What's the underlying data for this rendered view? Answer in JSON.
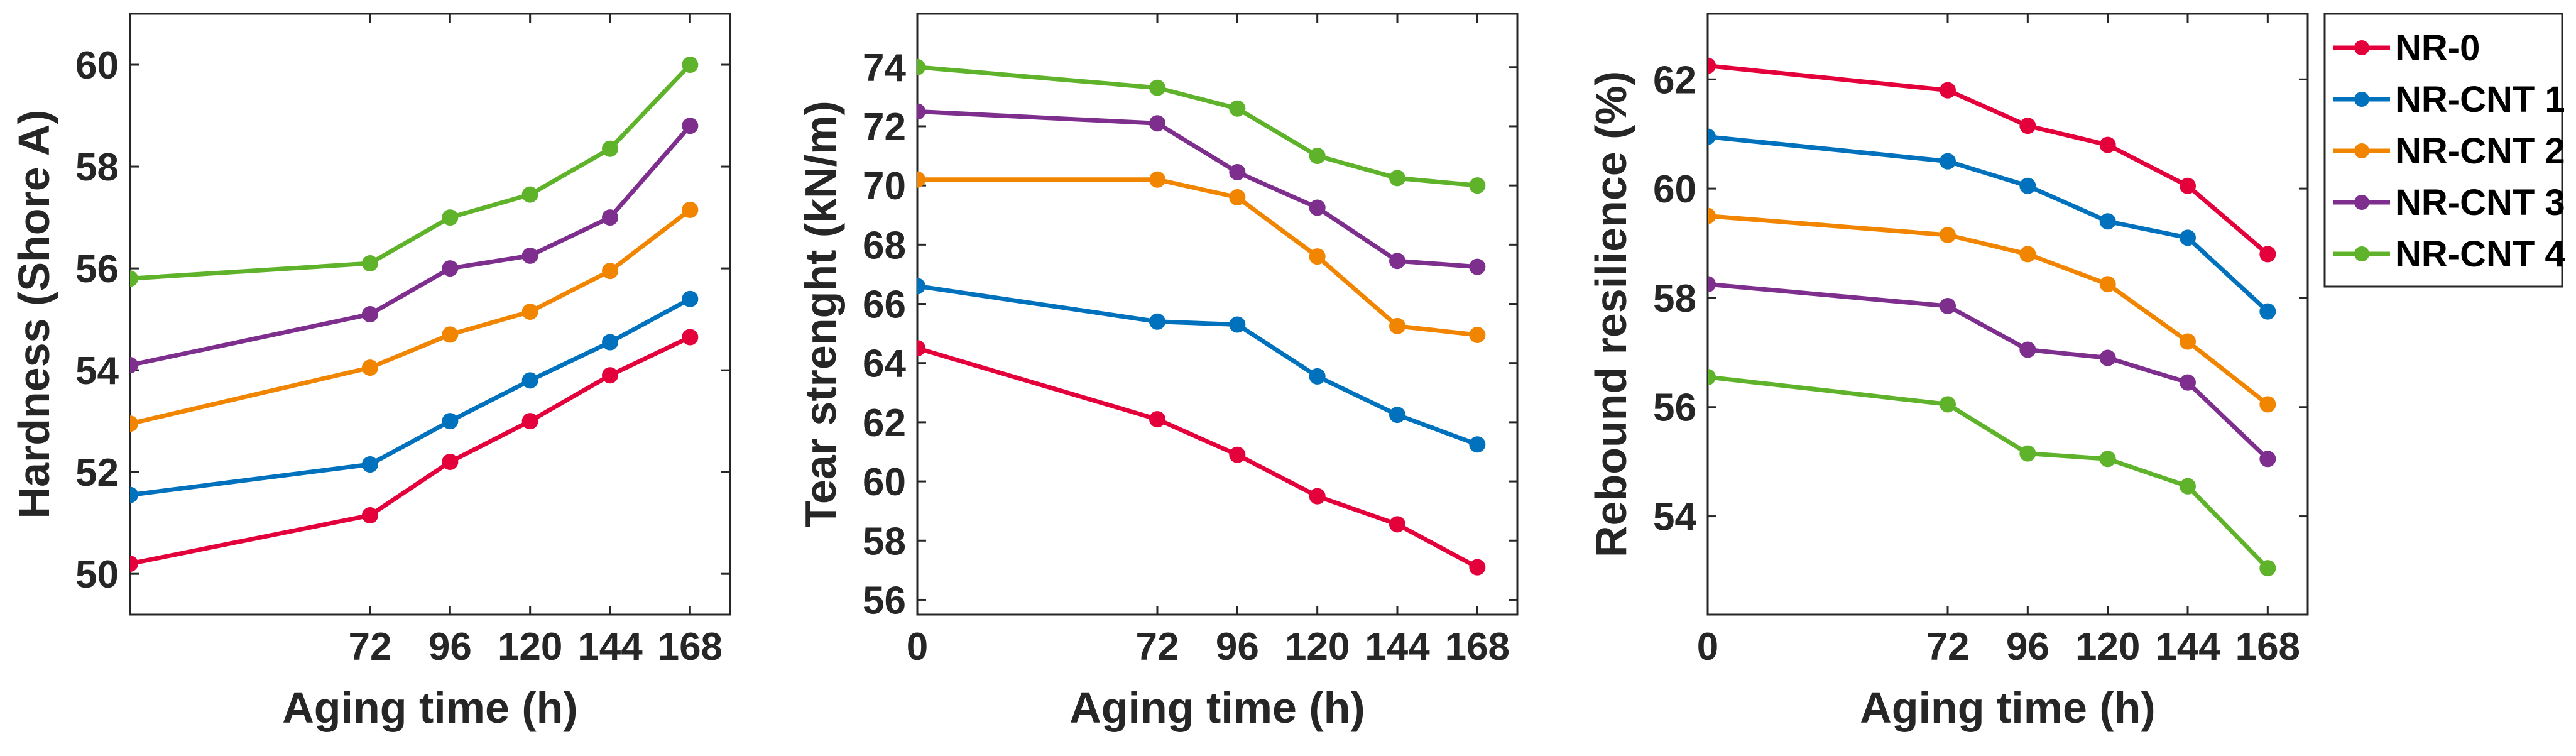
{
  "legend": {
    "entries": [
      "NR-0",
      "NR-CNT 1",
      "NR-CNT 2",
      "NR-CNT 3",
      "NR-CNT 4"
    ],
    "colors": [
      "#e4003a",
      "#0072bd",
      "#f28500",
      "#7e2f8e",
      "#5fb32a"
    ],
    "placement": "right"
  },
  "chart_data": [
    {
      "type": "line",
      "title": "",
      "xlabel": "Aging time (h)",
      "ylabel": "Hardness (Shore A)",
      "xlim": [
        0,
        180
      ],
      "ylim": [
        49.2,
        61
      ],
      "xticks": [
        72,
        96,
        120,
        144,
        168
      ],
      "xtick_labels": [
        "72",
        "96",
        "120",
        "144",
        "168"
      ],
      "yticks": [
        50,
        52,
        54,
        56,
        58,
        60
      ],
      "ytick_labels": [
        "50",
        "52",
        "54",
        "56",
        "58",
        "60"
      ],
      "grid": false,
      "x": [
        0,
        72,
        96,
        120,
        144,
        168
      ],
      "series": [
        {
          "name": "NR-0",
          "values": [
            50.2,
            51.15,
            52.2,
            53.0,
            53.9,
            54.65
          ]
        },
        {
          "name": "NR-CNT 1",
          "values": [
            51.55,
            52.15,
            53.0,
            53.8,
            54.55,
            55.4
          ]
        },
        {
          "name": "NR-CNT 2",
          "values": [
            52.95,
            54.05,
            54.7,
            55.15,
            55.95,
            57.15
          ]
        },
        {
          "name": "NR-CNT 3",
          "values": [
            54.1,
            55.1,
            56.0,
            56.25,
            57.0,
            58.8
          ]
        },
        {
          "name": "NR-CNT 4",
          "values": [
            55.8,
            56.1,
            57.0,
            57.45,
            58.35,
            60.0
          ]
        }
      ]
    },
    {
      "type": "line",
      "title": "",
      "xlabel": "Aging time (h)",
      "ylabel": "Tear strenght (kN/m)",
      "xlim": [
        0,
        180
      ],
      "ylim": [
        55.5,
        75.8
      ],
      "xticks": [
        0,
        72,
        96,
        120,
        144,
        168
      ],
      "xtick_labels": [
        "0",
        "72",
        "96",
        "120",
        "144",
        "168"
      ],
      "yticks": [
        56,
        58,
        60,
        62,
        64,
        66,
        68,
        70,
        72,
        74
      ],
      "ytick_labels": [
        "56",
        "58",
        "60",
        "62",
        "64",
        "66",
        "68",
        "70",
        "72",
        "74"
      ],
      "grid": false,
      "x": [
        0,
        72,
        96,
        120,
        144,
        168
      ],
      "series": [
        {
          "name": "NR-0",
          "values": [
            64.5,
            62.1,
            60.9,
            59.5,
            58.55,
            57.1
          ]
        },
        {
          "name": "NR-CNT 1",
          "values": [
            66.6,
            65.4,
            65.3,
            63.55,
            62.25,
            61.25
          ]
        },
        {
          "name": "NR-CNT 2",
          "values": [
            70.2,
            70.2,
            69.6,
            67.6,
            65.25,
            64.95
          ]
        },
        {
          "name": "NR-CNT 3",
          "values": [
            72.5,
            72.1,
            70.45,
            69.25,
            67.45,
            67.25
          ]
        },
        {
          "name": "NR-CNT 4",
          "values": [
            74.0,
            73.3,
            72.6,
            71.0,
            70.25,
            70.0
          ]
        }
      ]
    },
    {
      "type": "line",
      "title": "",
      "xlabel": "Aging time (h)",
      "ylabel": "Rebound resilience (%)",
      "xlim": [
        0,
        180
      ],
      "ylim": [
        52.2,
        63.2
      ],
      "xticks": [
        0,
        72,
        96,
        120,
        144,
        168
      ],
      "xtick_labels": [
        "0",
        "72",
        "96",
        "120",
        "144",
        "168"
      ],
      "yticks": [
        54,
        56,
        58,
        60,
        62
      ],
      "ytick_labels": [
        "54",
        "56",
        "58",
        "60",
        "62"
      ],
      "grid": false,
      "x": [
        0,
        72,
        96,
        120,
        144,
        168
      ],
      "series": [
        {
          "name": "NR-0",
          "values": [
            62.25,
            61.8,
            61.15,
            60.8,
            60.05,
            58.8
          ]
        },
        {
          "name": "NR-CNT 1",
          "values": [
            60.95,
            60.5,
            60.05,
            59.4,
            59.1,
            57.75
          ]
        },
        {
          "name": "NR-CNT 2",
          "values": [
            59.5,
            59.15,
            58.8,
            58.25,
            57.2,
            56.05
          ]
        },
        {
          "name": "NR-CNT 3",
          "values": [
            58.25,
            57.85,
            57.05,
            56.9,
            56.45,
            55.05
          ]
        },
        {
          "name": "NR-CNT 4",
          "values": [
            56.55,
            56.05,
            55.15,
            55.05,
            54.55,
            53.05
          ]
        }
      ]
    }
  ]
}
